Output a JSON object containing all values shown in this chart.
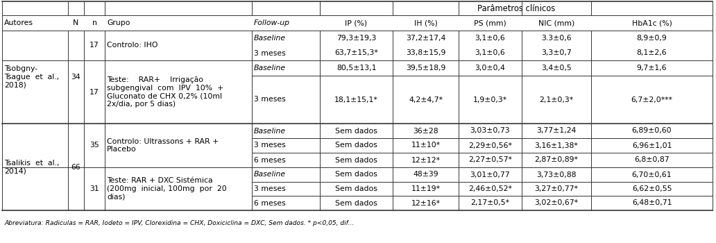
{
  "figsize": [
    10.32,
    3.5
  ],
  "dpi": 100,
  "col_headers": [
    "Autores",
    "N",
    "n",
    "Grupo",
    "Follow-up",
    "IP (%)",
    "IH (%)",
    "PS (mm)",
    "NIC (mm)",
    "HbA1c (%)"
  ],
  "col_aligns": [
    "left",
    "center",
    "center",
    "left",
    "left",
    "center",
    "center",
    "center",
    "center",
    "center"
  ],
  "font_size": 7.8,
  "footnote": "Abreviatura: Radiculas = RAR, Iodeto = IPV, Clorexidina = CHX, Doxiciclina = DXC, Sem dados. * p<0,05, dif..."
}
